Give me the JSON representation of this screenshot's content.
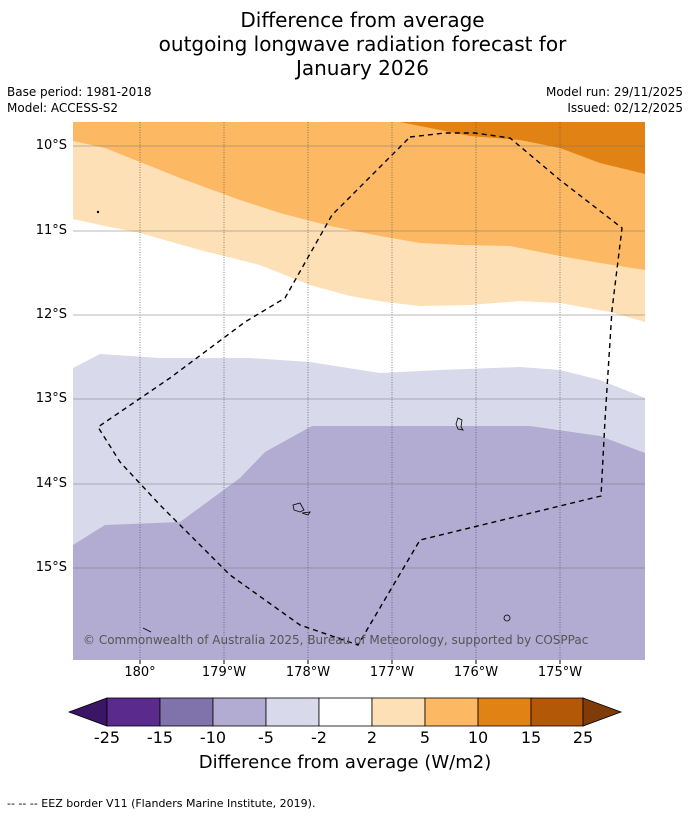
{
  "title": {
    "line1": "Difference from average",
    "line2": "outgoing longwave radiation forecast for",
    "line3": "January 2026"
  },
  "meta": {
    "base_period": "Base period: 1981-2018",
    "model": "Model: ACCESS-S2",
    "model_run": "Model run: 29/11/2025",
    "issued": "Issued: 02/12/2025"
  },
  "map": {
    "latitude_labels": [
      "10°S",
      "11°S",
      "12°S",
      "13°S",
      "14°S",
      "15°S"
    ],
    "longitude_labels": [
      "180°",
      "179°W",
      "178°W",
      "177°W",
      "176°W",
      "175°W"
    ],
    "copyright": "© Commonwealth of Australia 2025, Bureau of Meteorology, supported by COSPPac"
  },
  "colorbar": {
    "ticks": [
      "-25",
      "-15",
      "-10",
      "-5",
      "-2",
      "2",
      "5",
      "10",
      "15",
      "25"
    ],
    "colors": [
      "#3b1566",
      "#5a2a8c",
      "#8073ac",
      "#b2abd2",
      "#d8daeb",
      "#ffffff",
      "#fee0b6",
      "#fdb863",
      "#e08214",
      "#b35806",
      "#7f3b08"
    ],
    "label": "Difference from average (W/m2)"
  },
  "footnote": "--  --  -- EEZ border V11 (Flanders Marine Institute, 2019)."
}
